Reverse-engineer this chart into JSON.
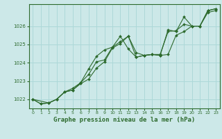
{
  "background_color": "#cce8e8",
  "plot_bg_color": "#cce8e8",
  "grid_color": "#add8d8",
  "line_color": "#2d6a2d",
  "marker_color": "#2d6a2d",
  "xlabel": "Graphe pression niveau de la mer (hPa)",
  "xlabel_fontsize": 6.5,
  "ylim": [
    1021.5,
    1027.2
  ],
  "xlim": [
    -0.5,
    23.5
  ],
  "yticks": [
    1022,
    1023,
    1024,
    1025,
    1026
  ],
  "xticks": [
    0,
    1,
    2,
    3,
    4,
    5,
    6,
    7,
    8,
    9,
    10,
    11,
    12,
    13,
    14,
    15,
    16,
    17,
    18,
    19,
    20,
    21,
    22,
    23
  ],
  "series1": {
    "x": [
      0,
      1,
      2,
      3,
      4,
      5,
      6,
      7,
      8,
      9,
      10,
      11,
      12,
      13,
      14,
      15,
      16,
      17,
      18,
      19,
      20,
      21,
      22,
      23
    ],
    "y": [
      1022.0,
      1021.75,
      1021.8,
      1022.0,
      1022.4,
      1022.5,
      1022.85,
      1023.1,
      1023.7,
      1024.05,
      1024.8,
      1025.05,
      1025.45,
      1024.3,
      1024.4,
      1024.45,
      1024.4,
      1024.45,
      1025.5,
      1025.7,
      1026.0,
      1026.0,
      1026.75,
      1026.85
    ]
  },
  "series2": {
    "x": [
      0,
      1,
      2,
      3,
      4,
      5,
      6,
      7,
      8,
      9,
      10,
      11,
      12,
      13,
      14,
      15,
      16,
      17,
      18,
      19,
      20,
      21,
      22,
      23
    ],
    "y": [
      1022.0,
      1021.75,
      1021.8,
      1022.0,
      1022.4,
      1022.5,
      1022.9,
      1023.35,
      1024.05,
      1024.15,
      1024.85,
      1025.45,
      1024.75,
      1024.3,
      1024.4,
      1024.45,
      1024.4,
      1025.8,
      1025.7,
      1026.5,
      1026.0,
      1026.0,
      1026.85,
      1026.95
    ]
  },
  "series3": {
    "x": [
      0,
      2,
      3,
      4,
      5,
      6,
      7,
      8,
      9,
      10,
      11,
      12,
      13,
      14,
      15,
      16,
      17,
      18,
      19,
      20,
      21,
      22,
      23
    ],
    "y": [
      1022.0,
      1021.8,
      1022.0,
      1022.4,
      1022.6,
      1022.9,
      1023.65,
      1024.35,
      1024.7,
      1024.85,
      1025.15,
      1025.45,
      1024.55,
      1024.4,
      1024.45,
      1024.45,
      1025.7,
      1025.75,
      1026.1,
      1026.0,
      1026.0,
      1026.85,
      1026.95
    ]
  }
}
